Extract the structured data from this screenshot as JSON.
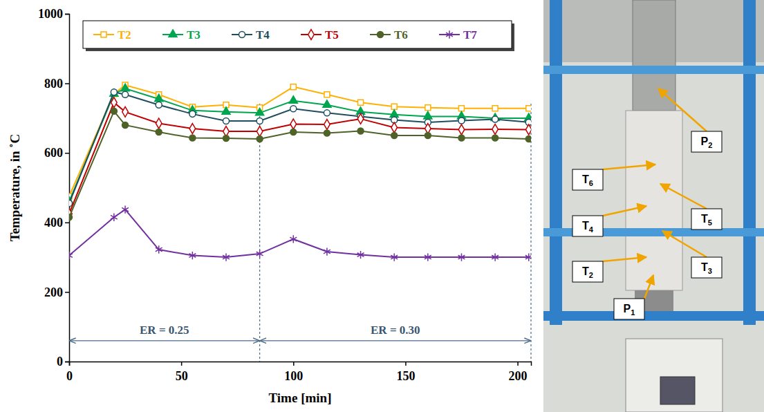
{
  "chart_data": {
    "type": "line",
    "x_label": "Time [min]",
    "y_label": "Temperature, in ˚C",
    "x": [
      0,
      20,
      25,
      40,
      55,
      70,
      85,
      100,
      115,
      130,
      145,
      160,
      175,
      190,
      205
    ],
    "xlim": [
      0,
      206
    ],
    "xticks": [
      0,
      50,
      100,
      150,
      200
    ],
    "ylim": [
      0,
      1000
    ],
    "yticks": [
      0,
      200,
      400,
      600,
      800,
      1000
    ],
    "legend": "top",
    "series": [
      {
        "name": "T2",
        "color": "#ffb000",
        "marker": "square-open",
        "values": [
          475,
          770,
          795,
          768,
          732,
          738,
          730,
          790,
          768,
          745,
          733,
          730,
          728,
          728,
          728
        ]
      },
      {
        "name": "T3",
        "color": "#00a550",
        "marker": "triangle",
        "values": [
          460,
          770,
          785,
          755,
          722,
          718,
          715,
          750,
          738,
          718,
          710,
          705,
          705,
          700,
          700
        ]
      },
      {
        "name": "T4",
        "color": "#1f4e5f",
        "marker": "circle-open",
        "values": [
          455,
          775,
          768,
          738,
          712,
          692,
          692,
          727,
          715,
          705,
          695,
          688,
          693,
          697,
          688
        ]
      },
      {
        "name": "T5",
        "color": "#c00000",
        "marker": "diamond-open",
        "values": [
          425,
          745,
          718,
          685,
          670,
          662,
          662,
          683,
          682,
          698,
          673,
          670,
          667,
          668,
          667
        ]
      },
      {
        "name": "T6",
        "color": "#4f6228",
        "marker": "circle",
        "values": [
          415,
          720,
          680,
          660,
          643,
          642,
          640,
          660,
          657,
          663,
          650,
          650,
          643,
          643,
          640
        ]
      },
      {
        "name": "T7",
        "color": "#7030a0",
        "marker": "asterisk",
        "values": [
          305,
          415,
          437,
          322,
          305,
          300,
          310,
          352,
          316,
          307,
          300,
          300,
          300,
          300,
          300
        ]
      }
    ],
    "vlines": [
      85,
      206
    ],
    "annotations": [
      {
        "text": "ER = 0.25",
        "x_range": [
          0,
          85
        ],
        "y": 60
      },
      {
        "text": "ER = 0.30",
        "x_range": [
          85,
          206
        ],
        "y": 60
      }
    ]
  },
  "photo": {
    "labels": [
      "P2",
      "T6",
      "T5",
      "T4",
      "T3",
      "T2",
      "P1"
    ]
  }
}
